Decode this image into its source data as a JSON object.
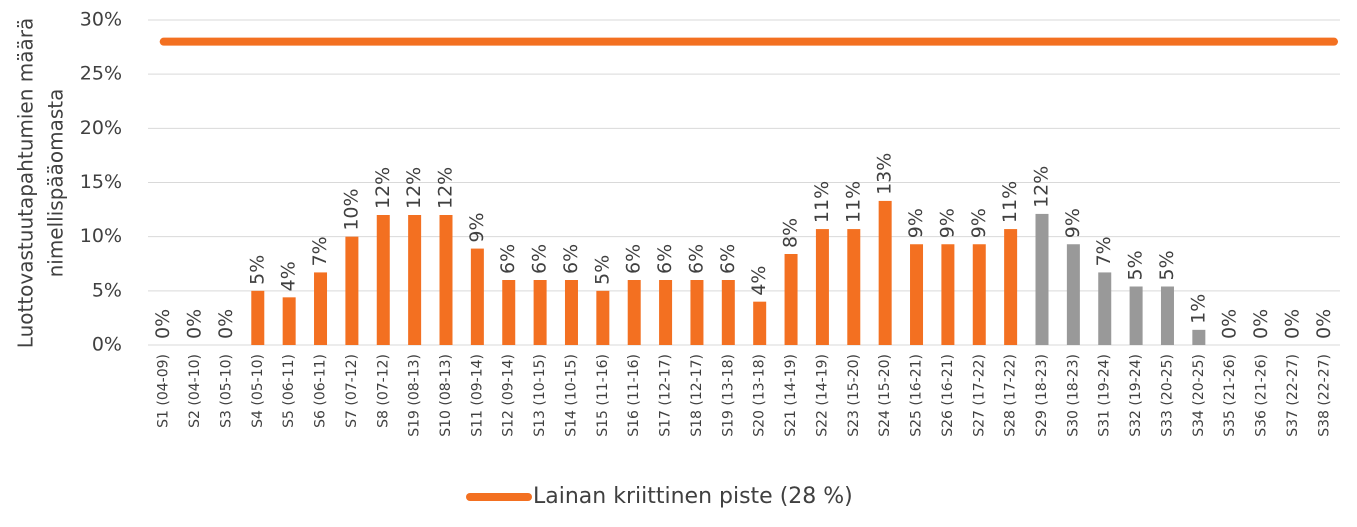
{
  "chart_data": {
    "type": "bar",
    "ylabel": [
      "Luottovastuutapahtumien määrä",
      "nimellispääomasta"
    ],
    "categories": [
      "S1 (04-09)",
      "S2 (04-10)",
      "S3 (05-10)",
      "S4 (05-10)",
      "S5 (06-11)",
      "S6 (06-11)",
      "S7 (07-12)",
      "S8 (07-12)",
      "S19 (08-13)",
      "S10 (08-13)",
      "S11 (09-14)",
      "S12 (09-14)",
      "S13 (10-15)",
      "S14 (10-15)",
      "S15 (11-16)",
      "S16 (11-16)",
      "S17 (12-17)",
      "S18 (12-17)",
      "S19 (13-18)",
      "S20 (13-18)",
      "S21 (14-19)",
      "S22 (14-19)",
      "S23 (15-20)",
      "S24 (15-20)",
      "S25 (16-21)",
      "S26 (16-21)",
      "S27 (17-22)",
      "S28 (17-22)",
      "S29 (18-23)",
      "S30 (18-23)",
      "S31 (19-24)",
      "S32 (19-24)",
      "S33 (20-25)",
      "S34 (20-25)",
      "S35 (21-26)",
      "S36 (21-26)",
      "S37 (22-27)",
      "S38 (22-27)"
    ],
    "values": [
      0,
      0,
      0,
      5.0,
      4.4,
      6.7,
      10.0,
      12.0,
      12.0,
      12.0,
      8.9,
      6.0,
      6.0,
      6.0,
      5.0,
      6.0,
      6.0,
      6.0,
      6.0,
      4.0,
      8.4,
      10.7,
      10.7,
      13.3,
      9.3,
      9.3,
      9.3,
      10.7,
      12.1,
      9.3,
      6.7,
      5.4,
      5.4,
      1.4,
      0,
      0,
      0,
      0
    ],
    "value_labels": [
      "0%",
      "0%",
      "0%",
      "5%",
      "4%",
      "7%",
      "10%",
      "12%",
      "12%",
      "12%",
      "9%",
      "6%",
      "6%",
      "6%",
      "5%",
      "6%",
      "6%",
      "6%",
      "6%",
      "4%",
      "8%",
      "11%",
      "11%",
      "13%",
      "9%",
      "9%",
      "9%",
      "11%",
      "12%",
      "9%",
      "7%",
      "5%",
      "5%",
      "1%",
      "0%",
      "0%",
      "0%",
      "0%"
    ],
    "colors": [
      "#f37021",
      "#f37021",
      "#f37021",
      "#f37021",
      "#f37021",
      "#f37021",
      "#f37021",
      "#f37021",
      "#f37021",
      "#f37021",
      "#f37021",
      "#f37021",
      "#f37021",
      "#f37021",
      "#f37021",
      "#f37021",
      "#f37021",
      "#f37021",
      "#f37021",
      "#f37021",
      "#f37021",
      "#f37021",
      "#f37021",
      "#f37021",
      "#f37021",
      "#f37021",
      "#f37021",
      "#f37021",
      "#999999",
      "#999999",
      "#999999",
      "#999999",
      "#999999",
      "#999999",
      "#999999",
      "#999999",
      "#999999",
      "#999999"
    ],
    "reference_line": {
      "name": "Lainan kriittinen piste (28 %)",
      "value": 28,
      "color": "#f37021"
    },
    "ylim": [
      0,
      30
    ],
    "yticks": [
      {
        "value": 0,
        "label": "0%"
      },
      {
        "value": 5,
        "label": "5%"
      },
      {
        "value": 10,
        "label": "10%"
      },
      {
        "value": 15,
        "label": "15%"
      },
      {
        "value": 20,
        "label": "20%"
      },
      {
        "value": 25,
        "label": "25%"
      },
      {
        "value": 30,
        "label": "30%"
      }
    ],
    "grid": true,
    "legend": "bottom"
  }
}
